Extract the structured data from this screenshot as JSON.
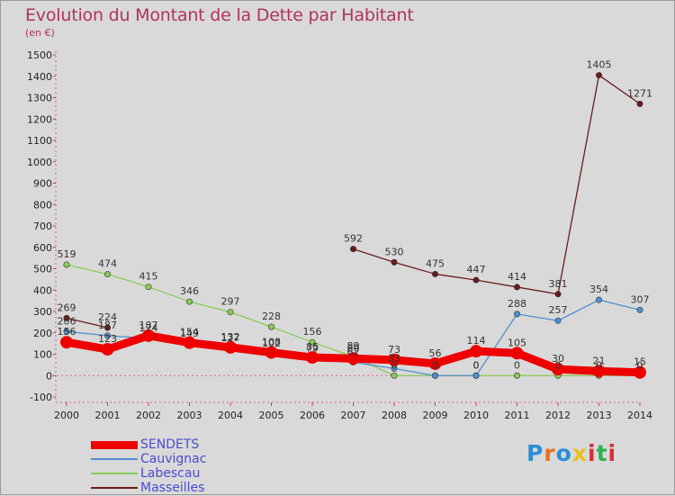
{
  "header": {
    "title": "Evolution du Montant de la Dette par Habitant",
    "unit": "(en €)"
  },
  "logo": {
    "text": "Proxiti",
    "colors": [
      "#2b8fd6",
      "#e8731e",
      "#2b8fd6",
      "#e8c21e",
      "#d63030",
      "#2bb34a",
      "#d63030"
    ]
  },
  "chart_data": {
    "type": "line",
    "x": [
      "2000",
      "2001",
      "2002",
      "2003",
      "2004",
      "2005",
      "2006",
      "2007",
      "2008",
      "2009",
      "2010",
      "2011",
      "2012",
      "2013",
      "2014"
    ],
    "ylim": [
      -100,
      1500
    ],
    "yticks": [
      -100,
      0,
      100,
      200,
      300,
      400,
      500,
      600,
      700,
      800,
      900,
      1000,
      1100,
      1200,
      1300,
      1400,
      1500
    ],
    "grid": false,
    "legend_position": "bottom-left",
    "series": [
      {
        "name": "SENDETS",
        "color": "#ee0000",
        "values": [
          156,
          123,
          187,
          154,
          132,
          108,
          85,
          80,
          73,
          56,
          114,
          105,
          30,
          21,
          15
        ],
        "labels": [
          "156",
          "123",
          "187",
          "154",
          "132",
          "108",
          "85",
          "80",
          "73",
          "56",
          "114",
          "105",
          "30",
          "21",
          "15"
        ]
      },
      {
        "name": "Cauvignac",
        "color": "#4f8fd0",
        "values": [
          206,
          187,
          174,
          149,
          127,
          102,
          79,
          62,
          33,
          0,
          0,
          288,
          257,
          354,
          307
        ],
        "labels": [
          "206",
          "187",
          "174",
          "149",
          "127",
          "102",
          "79",
          "62",
          "33",
          "0",
          "0",
          "288",
          "257",
          "354",
          "307"
        ]
      },
      {
        "name": "Labescau",
        "color": "#88cc55",
        "values": [
          519,
          474,
          415,
          346,
          297,
          228,
          156,
          89,
          0,
          0,
          0,
          0,
          0,
          0,
          0
        ],
        "labels": [
          "519",
          "474",
          "415",
          "346",
          "297",
          "228",
          "156",
          "89",
          "0",
          "0",
          "0",
          "0",
          "0",
          "0",
          "0"
        ]
      },
      {
        "name": "Masseilles",
        "color": "#6b1a1a",
        "values": [
          269,
          224,
          null,
          null,
          null,
          null,
          null,
          592,
          530,
          475,
          447,
          414,
          381,
          1405,
          1271
        ],
        "labels": [
          "269",
          "224",
          "",
          "",
          "",
          "",
          "",
          "592",
          "530",
          "475",
          "447",
          "414",
          "381",
          "1405",
          "1271"
        ]
      }
    ]
  }
}
